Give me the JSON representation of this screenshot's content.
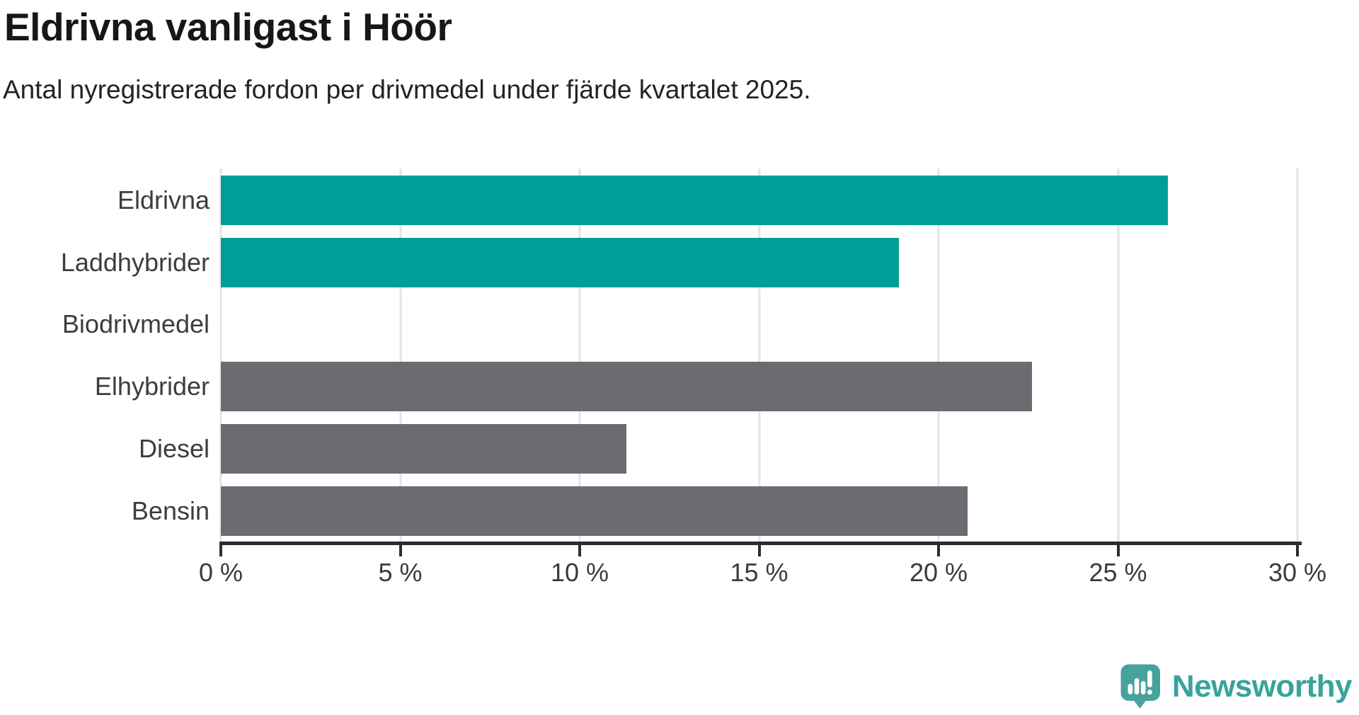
{
  "header": {
    "title": "Eldrivna vanligast i Höör",
    "subtitle": "Antal nyregistrerade fordon per drivmedel under fjärde kvartalet 2025."
  },
  "chart_data": {
    "type": "bar",
    "orientation": "horizontal",
    "title": "Eldrivna vanligast i Höör",
    "subtitle": "Antal nyregistrerade fordon per drivmedel under fjärde kvartalet 2025.",
    "categories": [
      "Eldrivna",
      "Laddhybrider",
      "Biodrivmedel",
      "Elhybrider",
      "Diesel",
      "Bensin"
    ],
    "values": [
      26.4,
      18.9,
      0,
      22.6,
      11.3,
      20.8
    ],
    "unit": "%",
    "xlim": [
      0,
      30
    ],
    "x_ticks": [
      0,
      5,
      10,
      15,
      20,
      25,
      30
    ],
    "x_tick_labels": [
      "0 %",
      "5 %",
      "10 %",
      "15 %",
      "20 %",
      "25 %",
      "30 %"
    ],
    "bar_colors": [
      "#009e97",
      "#009e97",
      "#009e97",
      "#6b6b71",
      "#6b6b71",
      "#6b6b71"
    ],
    "highlight_color": "#009e97",
    "default_color": "#6b6b71",
    "grid": true,
    "gridline_color": "#e3e3e3",
    "axis_color": "#2b2b2b",
    "legend": "none"
  },
  "footer": {
    "brand": "Newsworthy",
    "logo_color": "#47a29b"
  }
}
